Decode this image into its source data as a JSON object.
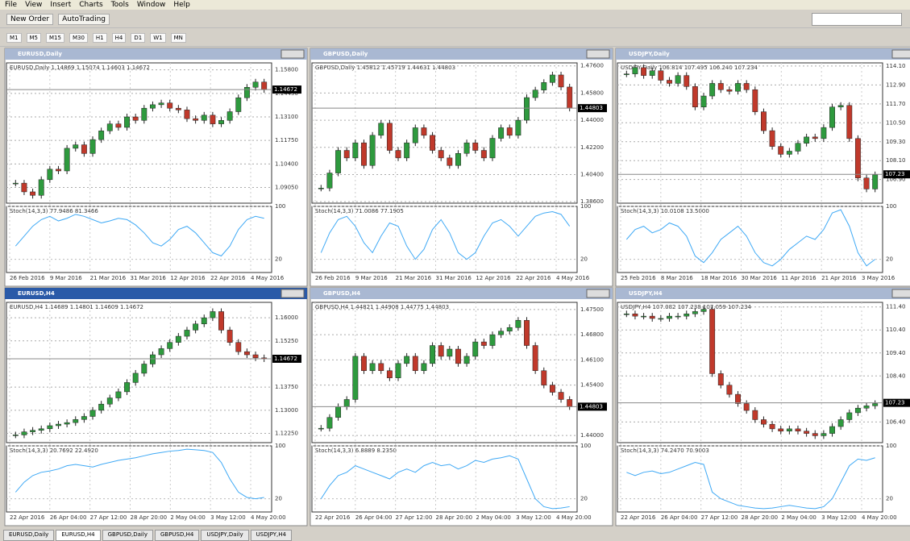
{
  "menu": [
    "File",
    "View",
    "Insert",
    "Charts",
    "Tools",
    "Window",
    "Help"
  ],
  "toolbar": {
    "buttons": [
      "New Order",
      "AutoTrading"
    ],
    "timeframes": [
      "M1",
      "M5",
      "M15",
      "M30",
      "H1",
      "H4",
      "D1",
      "W1",
      "MN"
    ]
  },
  "windows": [
    {
      "title": "EURUSD,Daily",
      "info": "EURUSD,Daily 1.14869 1.15074 1.14603 1.14672",
      "osc_label": "Stoch(14,3,3) 77.9486 81.3466",
      "current": {
        "value": 1.1467,
        "label": "1.14672"
      },
      "ylim": [
        1.0815,
        1.162
      ],
      "yticks": [
        {
          "value": 1.158,
          "label": "1.15800"
        },
        {
          "value": 1.1445,
          "label": "1.14450"
        },
        {
          "value": 1.131,
          "label": "1.13100"
        },
        {
          "value": 1.1175,
          "label": "1.11750"
        },
        {
          "value": 1.104,
          "label": "1.10400"
        },
        {
          "value": 1.0905,
          "label": "1.09050"
        }
      ],
      "dates": [
        "26 Feb 2016",
        "9 Mar 2016",
        "21 Mar 2016",
        "31 Mar 2016",
        "12 Apr 2016",
        "22 Apr 2016",
        "4 May 2016"
      ],
      "closes": [
        1.093,
        1.088,
        1.086,
        1.095,
        1.101,
        1.1,
        1.113,
        1.115,
        1.11,
        1.118,
        1.123,
        1.127,
        1.125,
        1.131,
        1.129,
        1.136,
        1.138,
        1.139,
        1.136,
        1.135,
        1.13,
        1.129,
        1.132,
        1.127,
        1.129,
        1.134,
        1.142,
        1.148,
        1.151,
        1.1467
      ],
      "stoch": [
        40,
        55,
        70,
        80,
        85,
        78,
        82,
        88,
        85,
        80,
        75,
        78,
        82,
        80,
        72,
        60,
        45,
        40,
        50,
        65,
        70,
        60,
        45,
        30,
        25,
        40,
        65,
        80,
        85,
        82
      ]
    },
    {
      "title": "GBPUSD,Daily",
      "info": "GBPUSD,Daily 1.45812 1.45719 1.44631 1.44803",
      "osc_label": "Stoch(14,3,3) 71.0086 77.1905",
      "current": {
        "value": 1.448,
        "label": "1.44803"
      },
      "ylim": [
        1.385,
        1.478
      ],
      "yticks": [
        {
          "value": 1.476,
          "label": "1.47600"
        },
        {
          "value": 1.458,
          "label": "1.45800"
        },
        {
          "value": 1.44,
          "label": "1.44000"
        },
        {
          "value": 1.422,
          "label": "1.42200"
        },
        {
          "value": 1.404,
          "label": "1.40400"
        },
        {
          "value": 1.386,
          "label": "1.38600"
        }
      ],
      "dates": [
        "26 Feb 2016",
        "9 Mar 2016",
        "21 Mar 2016",
        "31 Mar 2016",
        "12 Apr 2016",
        "22 Apr 2016",
        "4 May 2016"
      ],
      "closes": [
        1.395,
        1.405,
        1.42,
        1.415,
        1.425,
        1.41,
        1.43,
        1.438,
        1.42,
        1.415,
        1.425,
        1.435,
        1.43,
        1.42,
        1.415,
        1.41,
        1.418,
        1.425,
        1.42,
        1.415,
        1.428,
        1.435,
        1.43,
        1.44,
        1.455,
        1.46,
        1.465,
        1.47,
        1.462,
        1.448
      ],
      "stoch": [
        30,
        60,
        80,
        85,
        70,
        45,
        30,
        55,
        75,
        70,
        40,
        20,
        35,
        65,
        80,
        60,
        30,
        20,
        30,
        55,
        75,
        80,
        70,
        55,
        70,
        85,
        90,
        92,
        88,
        70
      ]
    },
    {
      "title": "USDJPY,Daily",
      "info": "USDJPY,Daily 106.814 107.495 106.240 107.234",
      "osc_label": "Stoch(14,3,3) 10.0108 13.5000",
      "current": {
        "value": 107.23,
        "label": "107.23"
      },
      "ylim": [
        105.4,
        114.3
      ],
      "yticks": [
        {
          "value": 114.1,
          "label": "114.10"
        },
        {
          "value": 112.9,
          "label": "112.90"
        },
        {
          "value": 111.7,
          "label": "111.70"
        },
        {
          "value": 110.5,
          "label": "110.50"
        },
        {
          "value": 109.3,
          "label": "109.30"
        },
        {
          "value": 108.1,
          "label": "108.10"
        },
        {
          "value": 106.9,
          "label": "106.90"
        }
      ],
      "dates": [
        "25 Feb 2016",
        "8 Mar 2016",
        "18 Mar 2016",
        "30 Mar 2016",
        "11 Apr 2016",
        "21 Apr 2016",
        "3 May 2016"
      ],
      "closes": [
        113.6,
        114,
        113.5,
        113.8,
        113.2,
        113,
        113.5,
        112.8,
        111.5,
        112.2,
        113,
        112.6,
        112.5,
        113,
        112.6,
        111.2,
        110,
        109,
        108.5,
        108.7,
        109.2,
        109.6,
        109.5,
        110.2,
        111.5,
        111.6,
        109.5,
        107,
        106.3,
        107.2
      ],
      "stoch": [
        50,
        65,
        70,
        60,
        65,
        75,
        70,
        55,
        25,
        15,
        30,
        50,
        60,
        70,
        55,
        30,
        15,
        10,
        20,
        35,
        45,
        55,
        50,
        65,
        90,
        95,
        70,
        30,
        10,
        20
      ]
    },
    {
      "title": "EURUSD,H4",
      "info": "EURUSD,H4 1.14689 1.14801 1.14609 1.14672",
      "osc_label": "Stoch(14,3,3) 20.7692 22.4920",
      "current": {
        "value": 1.1467,
        "label": "1.14672"
      },
      "ylim": [
        1.1195,
        1.165
      ],
      "yticks": [
        {
          "value": 1.16,
          "label": "1.16000"
        },
        {
          "value": 1.1525,
          "label": "1.15250"
        },
        {
          "value": 1.1375,
          "label": "1.13750"
        },
        {
          "value": 1.13,
          "label": "1.13000"
        },
        {
          "value": 1.1225,
          "label": "1.12250"
        }
      ],
      "dates": [
        "22 Apr 2016",
        "26 Apr 04:00",
        "27 Apr 12:00",
        "28 Apr 20:00",
        "2 May 04:00",
        "3 May 12:00",
        "4 May 20:00"
      ],
      "closes": [
        1.122,
        1.123,
        1.1235,
        1.124,
        1.125,
        1.1255,
        1.126,
        1.127,
        1.128,
        1.13,
        1.132,
        1.134,
        1.136,
        1.139,
        1.142,
        1.145,
        1.148,
        1.15,
        1.152,
        1.154,
        1.156,
        1.158,
        1.16,
        1.162,
        1.156,
        1.152,
        1.149,
        1.148,
        1.147,
        1.1467
      ],
      "stoch": [
        30,
        45,
        55,
        60,
        62,
        65,
        70,
        72,
        70,
        68,
        72,
        75,
        78,
        80,
        82,
        85,
        88,
        90,
        92,
        93,
        95,
        94,
        93,
        90,
        75,
        50,
        30,
        22,
        20,
        22
      ]
    },
    {
      "title": "GBPUSD,H4",
      "info": "GBPUSD,H4 1.44821 1.44908 1.44775 1.44803",
      "osc_label": "Stoch(14,3,3) 6.8889 8.2350",
      "current": {
        "value": 1.448,
        "label": "1.44803"
      },
      "ylim": [
        1.438,
        1.477
      ],
      "yticks": [
        {
          "value": 1.475,
          "label": "1.47500"
        },
        {
          "value": 1.468,
          "label": "1.46800"
        },
        {
          "value": 1.461,
          "label": "1.46100"
        },
        {
          "value": 1.454,
          "label": "1.45400"
        },
        {
          "value": 1.44,
          "label": "1.44000"
        }
      ],
      "dates": [
        "22 Apr 2016",
        "26 Apr 04:00",
        "27 Apr 12:00",
        "28 Apr 20:00",
        "2 May 04:00",
        "3 May 12:00",
        "4 May 20:00"
      ],
      "closes": [
        1.442,
        1.445,
        1.448,
        1.45,
        1.462,
        1.458,
        1.46,
        1.458,
        1.456,
        1.46,
        1.462,
        1.458,
        1.46,
        1.465,
        1.462,
        1.464,
        1.46,
        1.462,
        1.466,
        1.465,
        1.468,
        1.469,
        1.47,
        1.472,
        1.465,
        1.458,
        1.454,
        1.452,
        1.45,
        1.448
      ],
      "stoch": [
        20,
        40,
        55,
        60,
        70,
        65,
        60,
        55,
        50,
        60,
        65,
        60,
        70,
        75,
        70,
        72,
        65,
        70,
        78,
        75,
        80,
        82,
        85,
        80,
        50,
        20,
        8,
        5,
        6,
        8
      ]
    },
    {
      "title": "USDJPY,H4",
      "info": "USDJPY,H4 107.082 107.238 107.059 107.234",
      "osc_label": "Stoch(14,3,3) 74.2470 70.9003",
      "current": {
        "value": 107.23,
        "label": "107.23"
      },
      "ylim": [
        105.5,
        111.6
      ],
      "yticks": [
        {
          "value": 111.4,
          "label": "111.40"
        },
        {
          "value": 110.4,
          "label": "110.40"
        },
        {
          "value": 109.4,
          "label": "109.40"
        },
        {
          "value": 108.4,
          "label": "108.40"
        },
        {
          "value": 106.4,
          "label": "106.40"
        }
      ],
      "dates": [
        "22 Apr 2016",
        "26 Apr 04:00",
        "27 Apr 12:00",
        "28 Apr 20:00",
        "2 May 04:00",
        "3 May 12:00",
        "4 May 20:00"
      ],
      "closes": [
        111.1,
        111,
        111,
        110.9,
        110.9,
        111,
        111,
        111.1,
        111.2,
        111.3,
        108.5,
        108,
        107.6,
        107.2,
        106.9,
        106.5,
        106.3,
        106.1,
        106,
        106.1,
        106,
        105.9,
        105.8,
        105.9,
        106.2,
        106.5,
        106.8,
        107,
        107.1,
        107.2
      ],
      "stoch": [
        60,
        55,
        60,
        62,
        58,
        60,
        65,
        70,
        75,
        72,
        30,
        20,
        15,
        10,
        8,
        6,
        5,
        6,
        8,
        10,
        8,
        6,
        5,
        8,
        20,
        45,
        70,
        80,
        78,
        82
      ]
    }
  ],
  "osc": {
    "ylim": [
      0,
      100
    ],
    "yticks": [
      100,
      20
    ]
  },
  "active": 3,
  "tabs": [
    "EURUSD,Daily",
    "EURUSD,H4",
    "GBPUSD,Daily",
    "GBPUSD,H4",
    "USDJPY,Daily",
    "USDJPY,H4"
  ]
}
